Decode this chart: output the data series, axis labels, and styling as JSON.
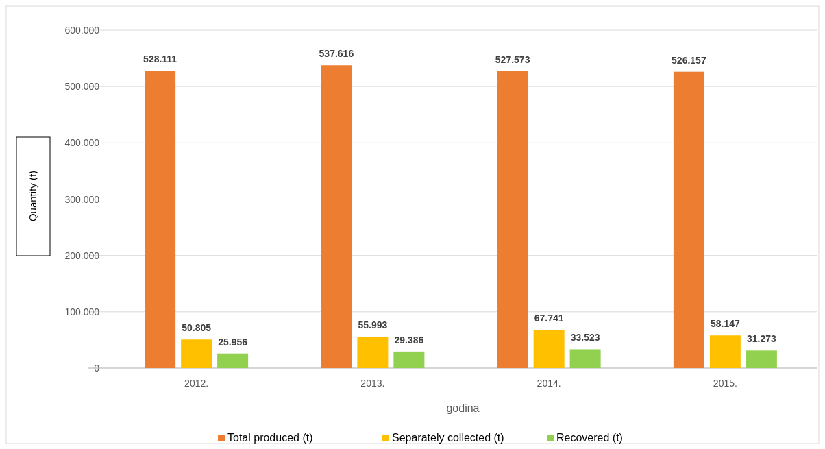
{
  "chart_data": {
    "type": "bar",
    "xlabel": "godina",
    "ylabel": "Quantity (t)",
    "categories": [
      "2012.",
      "2013.",
      "2014.",
      "2015."
    ],
    "series": [
      {
        "name": "Total produced (t)",
        "color": "#ed7d31",
        "values": [
          528111,
          537616,
          527573,
          526157
        ],
        "value_labels": [
          "528.111",
          "537.616",
          "527.573",
          "526.157"
        ]
      },
      {
        "name": "Separately collected (t)",
        "color": "#ffc000",
        "values": [
          50805,
          55993,
          67741,
          58147
        ],
        "value_labels": [
          "50.805",
          "55.993",
          "67.741",
          "58.147"
        ]
      },
      {
        "name": "Recovered (t)",
        "color": "#92d050",
        "values": [
          25956,
          29386,
          33523,
          31273
        ],
        "value_labels": [
          "25.956",
          "29.386",
          "33.523",
          "31.273"
        ]
      }
    ],
    "ylim": [
      0,
      600000
    ],
    "yticks": [
      {
        "value": 0,
        "label": "0"
      },
      {
        "value": 100000,
        "label": "100.000"
      },
      {
        "value": 200000,
        "label": "200.000"
      },
      {
        "value": 300000,
        "label": "300.000"
      },
      {
        "value": 400000,
        "label": "400.000"
      },
      {
        "value": 500000,
        "label": "500.000"
      },
      {
        "value": 600000,
        "label": "600.000"
      }
    ],
    "grid": "y",
    "legend": "bottom"
  }
}
